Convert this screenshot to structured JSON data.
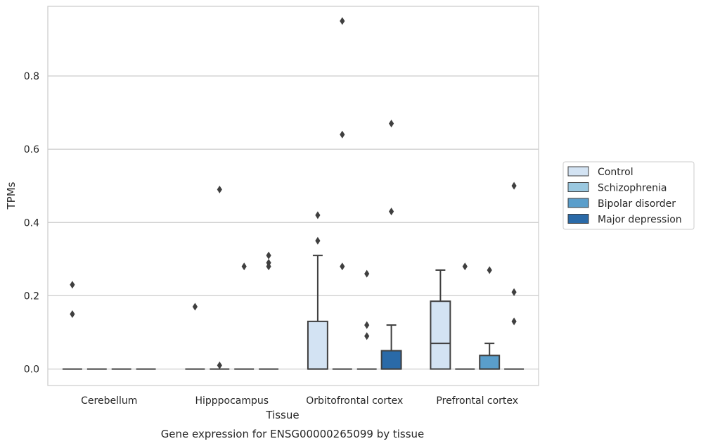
{
  "chart_data": {
    "type": "box",
    "title": "",
    "xlabel": "Tissue",
    "ylabel": "TPMs",
    "caption": "Gene expression for ENSG00000265099 by tissue",
    "categories": [
      "Cerebellum",
      "Hipppocampus",
      "Orbitofrontal cortex",
      "Prefrontal cortex"
    ],
    "ylim": [
      -0.045,
      0.99
    ],
    "yticks": [
      0.0,
      0.2,
      0.4,
      0.6,
      0.8
    ],
    "ytick_labels": [
      "0.0",
      "0.2",
      "0.4",
      "0.6",
      "0.8"
    ],
    "grid": "horizontal",
    "legend_position": "right",
    "series": [
      {
        "name": "Control",
        "color": "#d3e3f3",
        "boxes": [
          {
            "category": "Cerebellum",
            "q1": 0,
            "median": 0,
            "q3": 0,
            "whisker_low": 0,
            "whisker_high": 0,
            "outliers": [
              0.23,
              0.15
            ]
          },
          {
            "category": "Hipppocampus",
            "q1": 0,
            "median": 0,
            "q3": 0,
            "whisker_low": 0,
            "whisker_high": 0,
            "outliers": [
              0.17
            ]
          },
          {
            "category": "Orbitofrontal cortex",
            "q1": 0,
            "median": 0,
            "q3": 0.13,
            "whisker_low": 0,
            "whisker_high": 0.31,
            "outliers": [
              0.42,
              0.35
            ]
          },
          {
            "category": "Prefrontal cortex",
            "q1": 0,
            "median": 0.07,
            "q3": 0.185,
            "whisker_low": 0,
            "whisker_high": 0.27,
            "outliers": []
          }
        ]
      },
      {
        "name": "Schizophrenia",
        "color": "#9ac8e0",
        "boxes": [
          {
            "category": "Cerebellum",
            "q1": 0,
            "median": 0,
            "q3": 0,
            "whisker_low": 0,
            "whisker_high": 0,
            "outliers": []
          },
          {
            "category": "Hipppocampus",
            "q1": 0,
            "median": 0,
            "q3": 0,
            "whisker_low": 0,
            "whisker_high": 0,
            "outliers": [
              0.49,
              0.01
            ]
          },
          {
            "category": "Orbitofrontal cortex",
            "q1": 0,
            "median": 0,
            "q3": 0,
            "whisker_low": 0,
            "whisker_high": 0,
            "outliers": [
              0.95,
              0.64,
              0.28
            ]
          },
          {
            "category": "Prefrontal cortex",
            "q1": 0,
            "median": 0,
            "q3": 0,
            "whisker_low": 0,
            "whisker_high": 0,
            "outliers": [
              0.28
            ]
          }
        ]
      },
      {
        "name": "Bipolar disorder",
        "color": "#5a9ecb",
        "boxes": [
          {
            "category": "Cerebellum",
            "q1": 0,
            "median": 0,
            "q3": 0,
            "whisker_low": 0,
            "whisker_high": 0,
            "outliers": []
          },
          {
            "category": "Hipppocampus",
            "q1": 0,
            "median": 0,
            "q3": 0,
            "whisker_low": 0,
            "whisker_high": 0,
            "outliers": [
              0.28
            ]
          },
          {
            "category": "Orbitofrontal cortex",
            "q1": 0,
            "median": 0,
            "q3": 0,
            "whisker_low": 0,
            "whisker_high": 0,
            "outliers": [
              0.26,
              0.12,
              0.09
            ]
          },
          {
            "category": "Prefrontal cortex",
            "q1": 0,
            "median": 0,
            "q3": 0.037,
            "whisker_low": 0,
            "whisker_high": 0.07,
            "outliers": [
              0.27
            ]
          }
        ]
      },
      {
        "name": "Major depression",
        "color": "#2a6aa8",
        "boxes": [
          {
            "category": "Cerebellum",
            "q1": 0,
            "median": 0,
            "q3": 0,
            "whisker_low": 0,
            "whisker_high": 0,
            "outliers": []
          },
          {
            "category": "Hipppocampus",
            "q1": 0,
            "median": 0,
            "q3": 0,
            "whisker_low": 0,
            "whisker_high": 0,
            "outliers": [
              0.31,
              0.29,
              0.28
            ]
          },
          {
            "category": "Orbitofrontal cortex",
            "q1": 0,
            "median": 0,
            "q3": 0.05,
            "whisker_low": 0,
            "whisker_high": 0.12,
            "outliers": [
              0.67,
              0.43
            ]
          },
          {
            "category": "Prefrontal cortex",
            "q1": 0,
            "median": 0,
            "q3": 0,
            "whisker_low": 0,
            "whisker_high": 0,
            "outliers": [
              0.5,
              0.21,
              0.13
            ]
          }
        ]
      }
    ]
  }
}
